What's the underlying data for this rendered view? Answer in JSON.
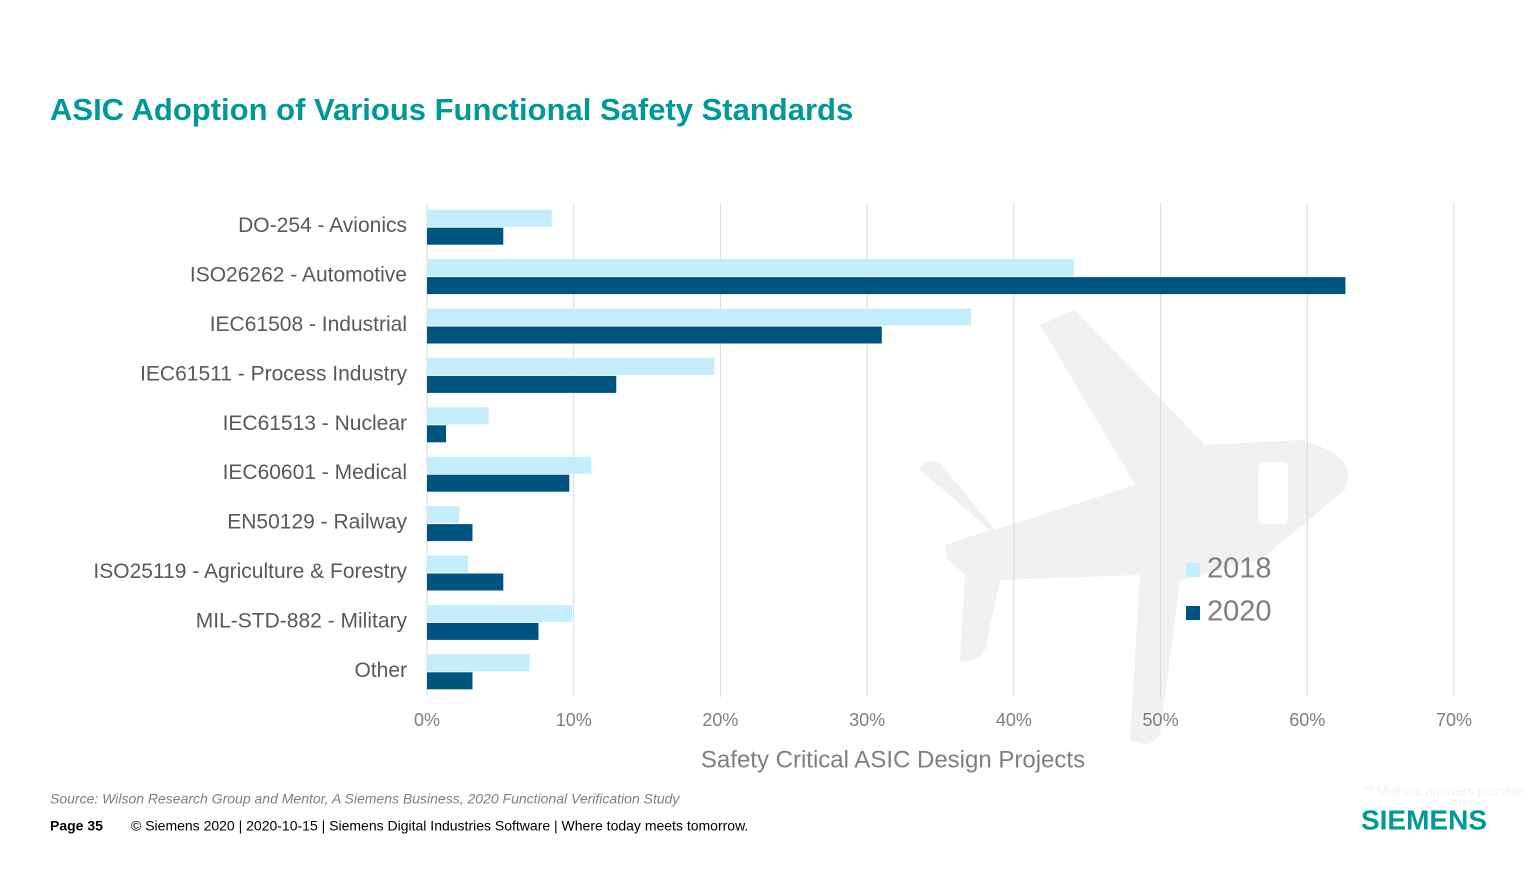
{
  "chart_data": {
    "type": "bar",
    "orientation": "horizontal",
    "title": "ASIC Adoption of Various Functional Safety Standards",
    "x_label": "Safety Critical ASIC Design Projects",
    "categories": [
      "DO-254 - Avionics",
      "ISO26262 - Automotive",
      "IEC61508 - Industrial",
      "IEC61511 - Process Industry",
      "IEC61513 - Nuclear",
      "IEC60601 - Medical",
      "EN50129 - Railway",
      "ISO25119 - Agriculture & Forestry",
      "MIL-STD-882 - Military",
      "Other"
    ],
    "series": [
      {
        "name": "2018",
        "color": "#c5eefc",
        "values": [
          8.5,
          44.1,
          37.1,
          19.6,
          4.2,
          11.2,
          2.2,
          2.8,
          9.9,
          7.0
        ]
      },
      {
        "name": "2020",
        "color": "#005580",
        "values": [
          5.2,
          62.6,
          31.0,
          12.9,
          1.3,
          9.7,
          3.1,
          5.2,
          7.6,
          3.1
        ]
      }
    ],
    "xlim": [
      0,
      70
    ],
    "xticks": [
      {
        "value": 0,
        "label": "0%"
      },
      {
        "value": 10,
        "label": "10%"
      },
      {
        "value": 20,
        "label": "20%"
      },
      {
        "value": 30,
        "label": "30%"
      },
      {
        "value": 40,
        "label": "40%"
      },
      {
        "value": 50,
        "label": "50%"
      },
      {
        "value": 60,
        "label": "60%"
      },
      {
        "value": 70,
        "label": "70%"
      }
    ],
    "grid": true
  },
  "footer": {
    "source": "Source:  Wilson Research Group and Mentor, A Siemens Business, 2020 Functional Verification Study",
    "page": "Page 35",
    "copyright": "© Siemens 2020 | 2020-10-15 | Siemens Digital Industries Software | Where today meets tomorrow.",
    "note": "** Multiple answers possible",
    "logo": "SIEMENS"
  }
}
